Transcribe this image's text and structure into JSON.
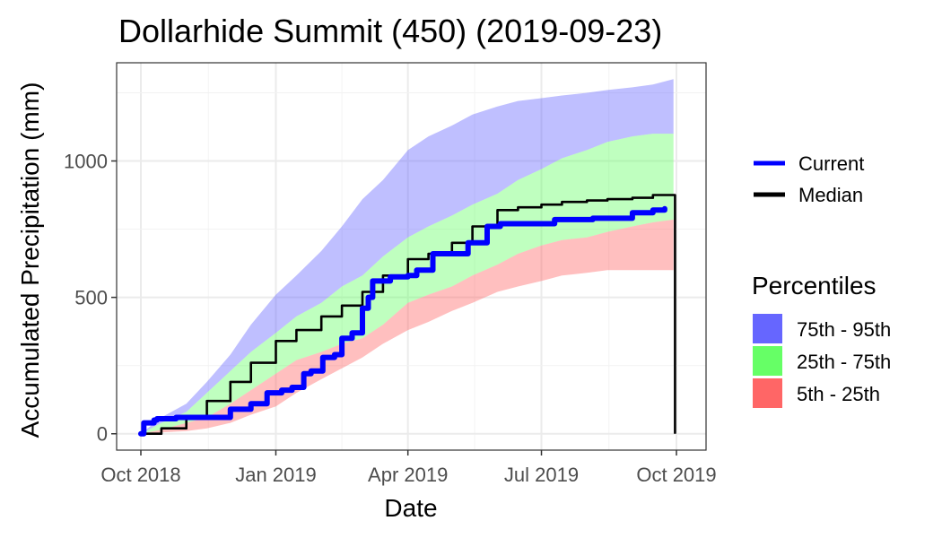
{
  "chart_data": {
    "type": "area",
    "title": "Dollarhide Summit (450) (2019-09-23)",
    "xlabel": "Date",
    "ylabel": "Accumulated Precipitation (mm)",
    "xlim": [
      "2018-10-01",
      "2019-10-01"
    ],
    "ylim": [
      -60,
      1360
    ],
    "x_ticks": [
      {
        "date": "2018-10-01",
        "label": "Oct 2018"
      },
      {
        "date": "2019-01-01",
        "label": "Jan 2019"
      },
      {
        "date": "2019-04-01",
        "label": "Apr 2019"
      },
      {
        "date": "2019-07-01",
        "label": "Jul 2019"
      },
      {
        "date": "2019-10-01",
        "label": "Oct 2019"
      }
    ],
    "y_ticks": [
      0,
      500,
      1000
    ],
    "grid": true,
    "legend_lines_title": "",
    "legend_lines": [
      {
        "name": "Current",
        "color": "#0000ff"
      },
      {
        "name": "Median",
        "color": "#000000"
      }
    ],
    "legend_bands_title": "Percentiles",
    "legend_bands": [
      {
        "name": "75th - 95th",
        "color": "#6666ff"
      },
      {
        "name": "25th - 75th",
        "color": "#66ff66"
      },
      {
        "name": "5th - 25th",
        "color": "#ff6666"
      }
    ],
    "bands": {
      "dates": [
        "2018-10-01",
        "2018-10-15",
        "2018-11-01",
        "2018-11-15",
        "2018-12-01",
        "2018-12-15",
        "2019-01-01",
        "2019-01-15",
        "2019-02-01",
        "2019-02-15",
        "2019-03-01",
        "2019-03-15",
        "2019-04-01",
        "2019-04-15",
        "2019-05-01",
        "2019-05-15",
        "2019-06-01",
        "2019-06-15",
        "2019-07-01",
        "2019-07-15",
        "2019-08-01",
        "2019-08-15",
        "2019-09-01",
        "2019-09-15",
        "2019-09-29"
      ],
      "p5": [
        0,
        5,
        10,
        20,
        40,
        70,
        100,
        150,
        200,
        240,
        280,
        330,
        380,
        410,
        450,
        480,
        520,
        540,
        560,
        580,
        590,
        600,
        600,
        600,
        600
      ],
      "p25": [
        0,
        15,
        40,
        60,
        110,
        160,
        220,
        270,
        300,
        330,
        350,
        400,
        480,
        510,
        540,
        580,
        620,
        660,
        690,
        710,
        720,
        740,
        760,
        775,
        785
      ],
      "p75": [
        0,
        40,
        80,
        150,
        230,
        300,
        370,
        430,
        480,
        540,
        580,
        650,
        720,
        760,
        800,
        840,
        880,
        930,
        970,
        1010,
        1040,
        1070,
        1090,
        1100,
        1100
      ],
      "p95": [
        0,
        60,
        110,
        190,
        290,
        400,
        510,
        580,
        670,
        760,
        860,
        930,
        1040,
        1090,
        1130,
        1170,
        1200,
        1220,
        1230,
        1240,
        1250,
        1260,
        1270,
        1280,
        1300
      ]
    },
    "series": [
      {
        "name": "Current",
        "color": "#0000ff",
        "x": [
          "2018-10-01",
          "2018-10-03",
          "2018-10-10",
          "2018-10-12",
          "2018-10-25",
          "2018-11-20",
          "2018-12-01",
          "2018-12-15",
          "2018-12-26",
          "2019-01-05",
          "2019-01-12",
          "2019-01-20",
          "2019-01-25",
          "2019-02-02",
          "2019-02-10",
          "2019-02-15",
          "2019-02-22",
          "2019-03-01",
          "2019-03-05",
          "2019-03-08",
          "2019-03-20",
          "2019-04-01",
          "2019-04-07",
          "2019-04-18",
          "2019-05-05",
          "2019-05-12",
          "2019-05-25",
          "2019-06-03",
          "2019-06-10",
          "2019-07-01",
          "2019-07-10",
          "2019-08-05",
          "2019-08-15",
          "2019-09-01",
          "2019-09-15",
          "2019-09-23"
        ],
        "y": [
          0,
          40,
          50,
          55,
          60,
          60,
          90,
          110,
          150,
          160,
          170,
          220,
          230,
          280,
          290,
          350,
          370,
          460,
          500,
          560,
          575,
          580,
          600,
          660,
          660,
          700,
          760,
          770,
          770,
          770,
          785,
          790,
          790,
          810,
          820,
          825
        ]
      },
      {
        "name": "Median",
        "color": "#000000",
        "x": [
          "2018-10-01",
          "2018-10-15",
          "2018-11-01",
          "2018-11-15",
          "2018-12-01",
          "2018-12-15",
          "2019-01-01",
          "2019-01-15",
          "2019-02-01",
          "2019-02-15",
          "2019-03-01",
          "2019-03-15",
          "2019-04-01",
          "2019-04-15",
          "2019-05-01",
          "2019-05-15",
          "2019-06-01",
          "2019-06-15",
          "2019-07-01",
          "2019-07-15",
          "2019-08-01",
          "2019-08-15",
          "2019-09-01",
          "2019-09-15",
          "2019-09-29",
          "2019-09-30"
        ],
        "y": [
          0,
          20,
          60,
          120,
          190,
          260,
          340,
          380,
          430,
          470,
          520,
          580,
          640,
          660,
          700,
          760,
          820,
          830,
          840,
          850,
          855,
          860,
          865,
          875,
          875,
          0
        ]
      }
    ]
  }
}
